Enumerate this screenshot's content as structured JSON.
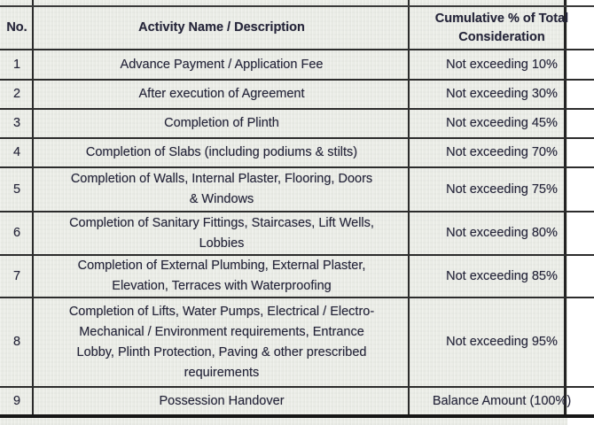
{
  "table": {
    "header": {
      "no": "No.",
      "activity": "Activity Name / Description",
      "cumulative": "Cumulative % of Total\nConsideration"
    },
    "rows": [
      {
        "no": "1",
        "activity": "Advance Payment / Application Fee",
        "cumulative": "Not exceeding 10%"
      },
      {
        "no": "2",
        "activity": "After execution of Agreement",
        "cumulative": "Not exceeding 30%"
      },
      {
        "no": "3",
        "activity": "Completion of Plinth",
        "cumulative": "Not exceeding 45%"
      },
      {
        "no": "4",
        "activity": "Completion of Slabs (including podiums & stilts)",
        "cumulative": "Not exceeding 70%"
      },
      {
        "no": "5",
        "activity": "Completion of Walls, Internal Plaster, Flooring, Doors\n& Windows",
        "cumulative": "Not exceeding 75%"
      },
      {
        "no": "6",
        "activity": "Completion of Sanitary Fittings, Staircases, Lift Wells,\nLobbies",
        "cumulative": "Not exceeding 80%"
      },
      {
        "no": "7",
        "activity": "Completion of External Plumbing, External Plaster,\nElevation, Terraces with Waterproofing",
        "cumulative": "Not exceeding 85%"
      },
      {
        "no": "8",
        "activity": "Completion of Lifts, Water Pumps, Electrical / Electro-\nMechanical / Environment requirements, Entrance\nLobby, Plinth Protection, Paving & other prescribed\nrequirements",
        "cumulative": "Not exceeding 95%"
      },
      {
        "no": "9",
        "activity": "Possession Handover",
        "cumulative": "Balance Amount (100%)"
      }
    ]
  },
  "colors": {
    "background": "#eaece6",
    "text": "#26263a",
    "border": "#2c2c2c"
  }
}
